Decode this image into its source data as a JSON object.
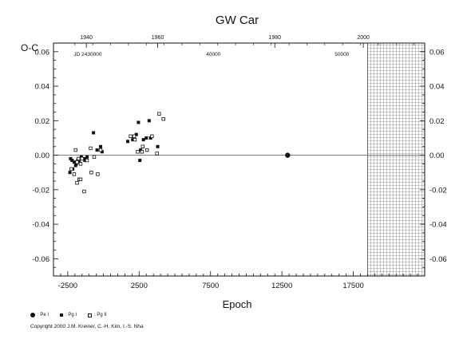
{
  "chart_data": {
    "type": "scatter",
    "title": "GW Car",
    "xlabel": "Epoch",
    "ylabel": "O-C",
    "xlim": [
      -3500,
      22500
    ],
    "ylim": [
      -0.07,
      0.065
    ],
    "x_ticks": [
      -2500,
      2500,
      7500,
      12500,
      17500
    ],
    "x_tick_labels": [
      "-2500",
      "2500",
      "7500",
      "12500",
      "17500"
    ],
    "y_ticks": [
      -0.06,
      -0.04,
      -0.02,
      0.0,
      0.02,
      0.04,
      0.06
    ],
    "y_tick_labels": [
      "-0.06",
      "-0.04",
      "-0.02",
      "0.00",
      "0.02",
      "0.04",
      "0.06"
    ],
    "top_axis_years": [
      {
        "epoch": -1200,
        "label": "1940"
      },
      {
        "epoch": 3800,
        "label": "1960"
      },
      {
        "epoch": 12000,
        "label": "1980"
      },
      {
        "epoch": 18200,
        "label": "2000"
      }
    ],
    "jd_labels": [
      {
        "epoch": -1100,
        "label": "JD 2430000"
      },
      {
        "epoch": 7700,
        "label": "40000"
      },
      {
        "epoch": 16700,
        "label": "50000"
      }
    ],
    "zero_line": true,
    "hatched_range": [
      18500,
      22500
    ],
    "series": [
      {
        "name": "Pe I",
        "marker": "filled-circle",
        "points": [
          [
            12900,
            0.0
          ]
        ]
      },
      {
        "name": "Pg I",
        "marker": "filled-square",
        "points": [
          [
            -2300,
            -0.002
          ],
          [
            -2200,
            -0.003
          ],
          [
            -2050,
            -0.004
          ],
          [
            -1900,
            -0.005
          ],
          [
            -1800,
            -0.003
          ],
          [
            -1700,
            -0.004
          ],
          [
            -1550,
            -0.001
          ],
          [
            -1450,
            -0.002
          ],
          [
            -1300,
            -0.003
          ],
          [
            -1150,
            -0.001
          ],
          [
            -2350,
            -0.01
          ],
          [
            -2150,
            -0.008
          ],
          [
            -1950,
            -0.006
          ],
          [
            -700,
            0.013
          ],
          [
            -450,
            0.003
          ],
          [
            -200,
            0.005
          ],
          [
            -100,
            0.002
          ],
          [
            -1250,
            -0.002
          ],
          [
            1700,
            0.008
          ],
          [
            2050,
            0.009
          ],
          [
            2300,
            0.012
          ],
          [
            2450,
            0.019
          ],
          [
            2600,
            0.003
          ],
          [
            2800,
            0.009
          ],
          [
            3000,
            0.01
          ],
          [
            3200,
            0.02
          ],
          [
            2550,
            -0.003
          ],
          [
            3800,
            0.005
          ],
          [
            3300,
            0.01
          ]
        ]
      },
      {
        "name": "Pg II",
        "marker": "open-square",
        "points": [
          [
            -2250,
            -0.008
          ],
          [
            -2050,
            -0.011
          ],
          [
            -1950,
            0.003
          ],
          [
            -1850,
            -0.004
          ],
          [
            -1750,
            -0.002
          ],
          [
            -1600,
            -0.005
          ],
          [
            -1500,
            -0.002
          ],
          [
            -1850,
            -0.016
          ],
          [
            -1700,
            -0.014
          ],
          [
            -1600,
            -0.014
          ],
          [
            -1350,
            -0.021
          ],
          [
            -1150,
            -0.003
          ],
          [
            -900,
            0.004
          ],
          [
            -650,
            -0.001
          ],
          [
            -400,
            -0.011
          ],
          [
            -200,
            0.003
          ],
          [
            -850,
            -0.01
          ],
          [
            1900,
            0.011
          ],
          [
            2150,
            0.011
          ],
          [
            2400,
            0.002
          ],
          [
            2700,
            0.002
          ],
          [
            3050,
            0.003
          ],
          [
            3400,
            0.011
          ],
          [
            3750,
            0.001
          ],
          [
            3900,
            0.024
          ],
          [
            4200,
            0.021
          ],
          [
            2200,
            0.009
          ],
          [
            2750,
            0.005
          ]
        ]
      }
    ],
    "legend": [
      {
        "symbol": "filled-circle",
        "label": ": Pe I"
      },
      {
        "symbol": "filled-square",
        "label": ": Pg I"
      },
      {
        "symbol": "open-square",
        "label": ": Pg II"
      }
    ]
  },
  "copyright": "Copyright 2000 J.M. Kreiner, C.-H. Kim, I.-S. Nha"
}
